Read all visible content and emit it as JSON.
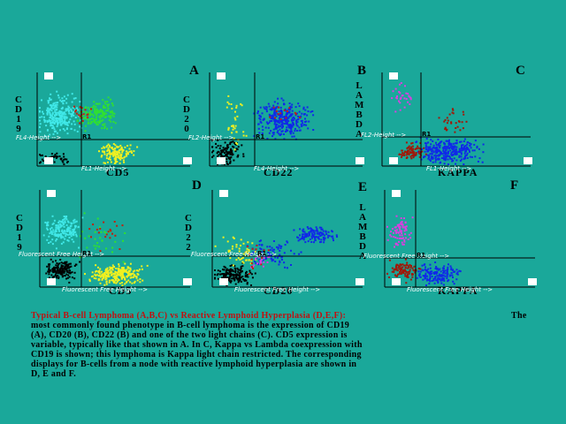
{
  "panels": [
    {
      "letter": "A",
      "y_label": "CD19",
      "x_label": "CD5",
      "y_axis_text": "FL4-Height -->",
      "x_axis_text": "FL1-Height -->",
      "gate_label": "R1"
    },
    {
      "letter": "B",
      "y_label": "CD20",
      "x_label": "CD22",
      "y_axis_text": "FL2-Height -->",
      "x_axis_text": "FL4-Height -->",
      "gate_label": "R1"
    },
    {
      "letter": "C",
      "y_label": "LAMBDA",
      "x_label": "KAPPA",
      "y_axis_text": "FL2-Height -->",
      "x_axis_text": "FL1-Height -->",
      "gate_label": "R1"
    },
    {
      "letter": "D",
      "y_label": "CD19",
      "x_label": "CD5",
      "y_axis_text": "Fluorescent Free Height -->",
      "x_axis_text": "Fluorescent Free Height -->",
      "gate_label": "R1"
    },
    {
      "letter": "E",
      "y_label": "CD22",
      "x_label": "CD20",
      "y_axis_text": "Fluorescent Free Height -->",
      "x_axis_text": "Fluorescent Free Height -->",
      "gate_label": "R1"
    },
    {
      "letter": "F",
      "y_label": "LAMBDA",
      "x_label": "KAPPA",
      "y_axis_text": "Fluorescent Free Height -->",
      "x_axis_text": "Fluorescent Free Height -->",
      "gate_label": "R1"
    }
  ],
  "caption": {
    "title": "Typical B-cell Lymphoma (A,B,C) vs Reactive Lymphoid Hyperplasia (D,E,F):",
    "title_end": "The",
    "lines": [
      "most commonly found phenotype in B-cell lymphoma is the expression of CD19",
      "(A), CD20 (B), CD22 (B) and one of the two light chains (C). CD5 expression is",
      "variable, typically like that shown in A. In C, Kappa vs Lambda coexpression with",
      "CD19 is shown; this lymphoma is Kappa light chain restricted. The corresponding",
      "displays for B-cells from a node with reactive lymphoid hyperplasia are shown in",
      "D, E and F."
    ]
  }
}
